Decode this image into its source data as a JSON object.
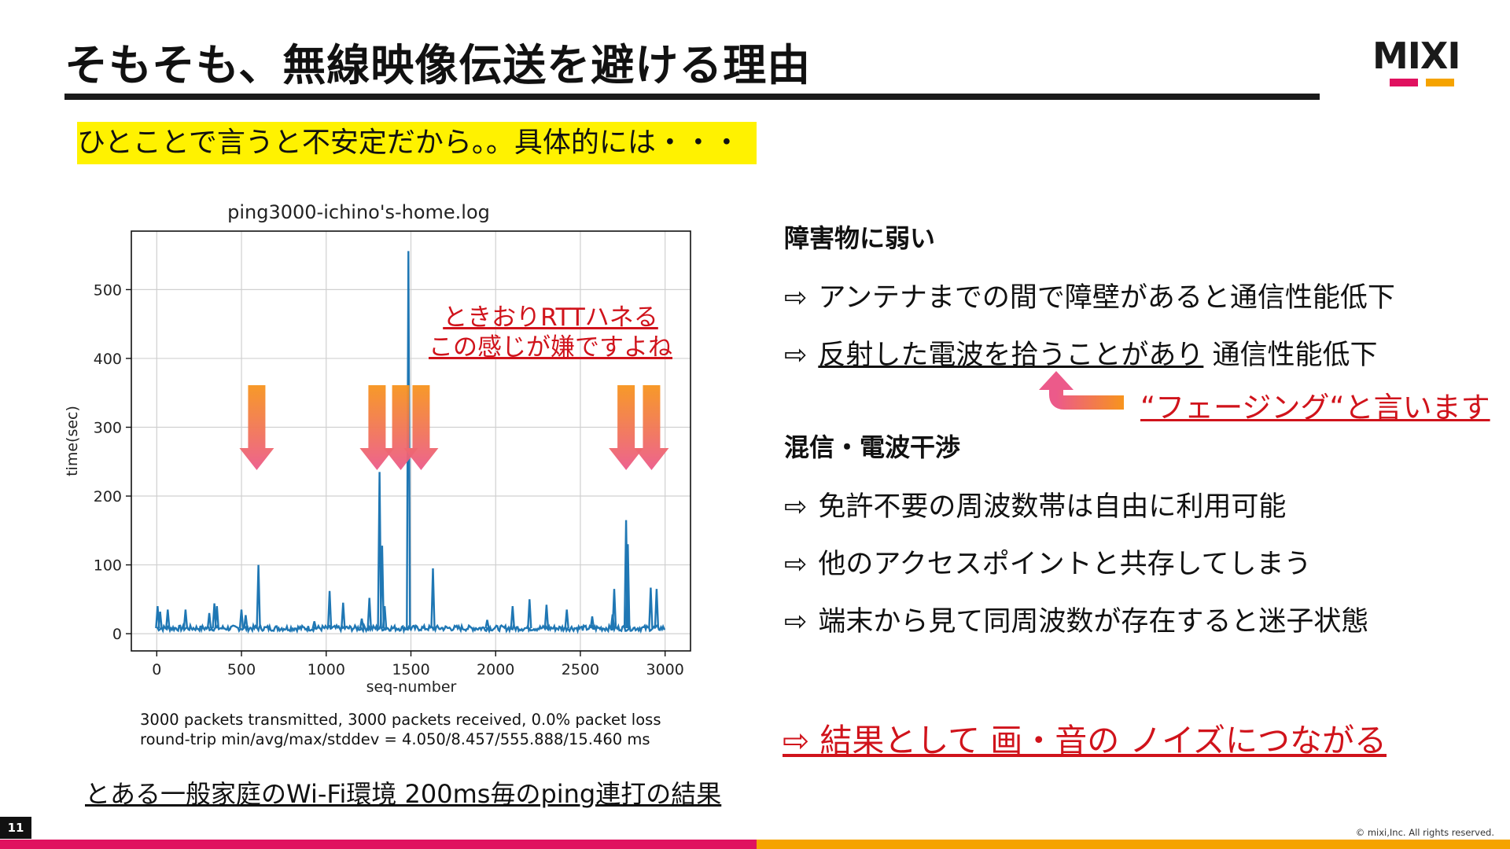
{
  "slide": {
    "title": "そもそも、無線映像伝送を避ける理由",
    "logo": "MIXI",
    "highlight": "ひとことで言うと不安定だから。。具体的には・・・",
    "page_number": "11",
    "copyright": "© mixi,Inc. All rights reserved."
  },
  "left": {
    "red_note_line1": "ときおりRTTハネる",
    "red_note_line2": "この感じが嫌ですよね",
    "stats_line1": "3000 packets transmitted, 3000 packets received, 0.0% packet loss",
    "stats_line2": "round-trip min/avg/max/stddev = 4.050/8.457/555.888/15.460 ms",
    "caption": "とある一般家庭のWi-Fi環境 200ms毎のping連打の結果"
  },
  "right": {
    "section1_heading": "障害物に弱い",
    "arrow_symbol": "⇨",
    "item1": "アンテナまでの間で障壁があると通信性能低下",
    "item2_underlined": "反射した電波を拾うことがあり",
    "item2_rest": " 通信性能低下",
    "fading_note": "“フェージング“と言います",
    "section2_heading": "混信・電波干渉",
    "item3": "免許不要の周波数帯は自由に利用可能",
    "item4": "他のアクセスポイントと共存してしまう",
    "item5": "端末から見て同周波数が存在すると迷子状態",
    "result": "⇨ 結果として 画・音の ノイズにつながる"
  },
  "colors": {
    "accent_red": "#e0115f",
    "accent_orange": "#f5a300",
    "note_red": "#d0131b",
    "highlight_yellow": "#fff200",
    "series_blue": "#1f77b4"
  },
  "chart_data": {
    "type": "line",
    "title": "ping3000-ichino's-home.log",
    "xlabel": "seq-number",
    "ylabel": "time(sec)",
    "xlim": [
      -150,
      3150
    ],
    "ylim": [
      -25,
      585
    ],
    "xticks": [
      0,
      500,
      1000,
      1500,
      2000,
      2500,
      3000
    ],
    "yticks": [
      0,
      100,
      200,
      300,
      400,
      500
    ],
    "grid": true,
    "baseline": 8,
    "series": [
      {
        "spikes": [
          {
            "x": 5,
            "y": 40
          },
          {
            "x": 20,
            "y": 32
          },
          {
            "x": 65,
            "y": 35
          },
          {
            "x": 170,
            "y": 35
          },
          {
            "x": 310,
            "y": 30
          },
          {
            "x": 340,
            "y": 44
          },
          {
            "x": 355,
            "y": 40
          },
          {
            "x": 500,
            "y": 35
          },
          {
            "x": 525,
            "y": 27
          },
          {
            "x": 600,
            "y": 100
          },
          {
            "x": 930,
            "y": 18
          },
          {
            "x": 1020,
            "y": 62
          },
          {
            "x": 1100,
            "y": 45
          },
          {
            "x": 1210,
            "y": 22
          },
          {
            "x": 1255,
            "y": 52
          },
          {
            "x": 1315,
            "y": 235
          },
          {
            "x": 1330,
            "y": 128
          },
          {
            "x": 1345,
            "y": 40
          },
          {
            "x": 1485,
            "y": 556
          },
          {
            "x": 1630,
            "y": 95
          },
          {
            "x": 1950,
            "y": 20
          },
          {
            "x": 2100,
            "y": 40
          },
          {
            "x": 2200,
            "y": 50
          },
          {
            "x": 2300,
            "y": 42
          },
          {
            "x": 2420,
            "y": 35
          },
          {
            "x": 2570,
            "y": 25
          },
          {
            "x": 2690,
            "y": 28
          },
          {
            "x": 2700,
            "y": 65
          },
          {
            "x": 2770,
            "y": 165
          },
          {
            "x": 2780,
            "y": 130
          },
          {
            "x": 2915,
            "y": 67
          },
          {
            "x": 2950,
            "y": 65
          }
        ]
      }
    ],
    "annotation_arrows_x": [
      590,
      1300,
      1440,
      1560,
      2770,
      2920
    ]
  }
}
